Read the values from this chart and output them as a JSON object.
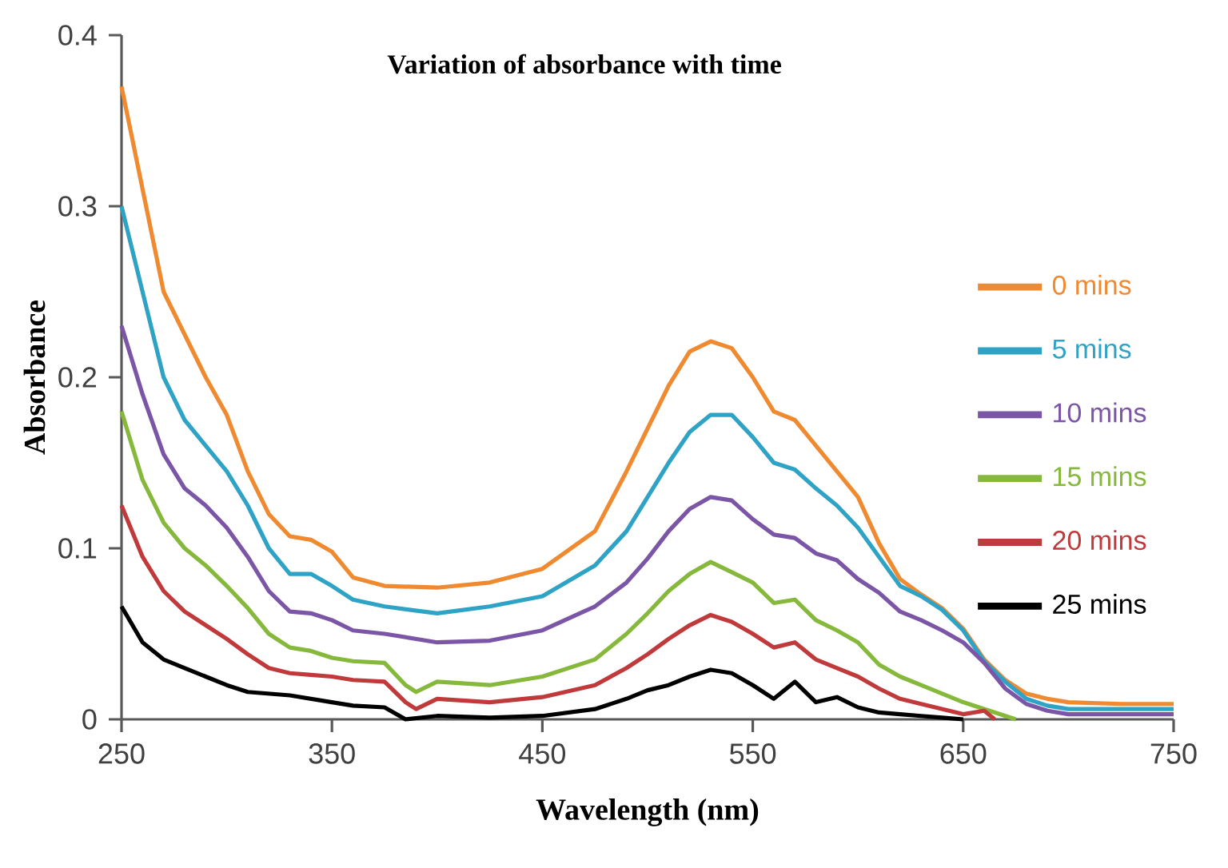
{
  "chart_data": {
    "type": "line",
    "title": "Variation of absorbance with time",
    "xlabel": "Wavelength (nm)",
    "ylabel": "Absorbance",
    "xlim": [
      250,
      750
    ],
    "ylim": [
      0,
      0.4
    ],
    "xticks": [
      250,
      350,
      450,
      550,
      650,
      750
    ],
    "yticks": [
      0,
      0.1,
      0.2,
      0.3,
      0.4
    ],
    "grid": false,
    "legend": "right",
    "line_style": "solid",
    "series": [
      {
        "name": "0 mins",
        "color": "#f08a30",
        "x": [
          250,
          260,
          270,
          280,
          290,
          300,
          310,
          320,
          330,
          340,
          350,
          360,
          375,
          400,
          425,
          450,
          475,
          490,
          500,
          510,
          520,
          530,
          540,
          550,
          560,
          570,
          580,
          590,
          600,
          610,
          620,
          630,
          640,
          650,
          660,
          670,
          680,
          690,
          700,
          725,
          750
        ],
        "values": [
          0.37,
          0.31,
          0.25,
          0.225,
          0.2,
          0.178,
          0.145,
          0.12,
          0.107,
          0.105,
          0.098,
          0.083,
          0.078,
          0.077,
          0.08,
          0.088,
          0.11,
          0.145,
          0.17,
          0.195,
          0.215,
          0.221,
          0.217,
          0.2,
          0.18,
          0.175,
          0.16,
          0.145,
          0.13,
          0.103,
          0.082,
          0.073,
          0.065,
          0.053,
          0.035,
          0.023,
          0.015,
          0.012,
          0.01,
          0.009,
          0.009
        ]
      },
      {
        "name": "5 mins",
        "color": "#2ea3c6",
        "x": [
          250,
          260,
          270,
          280,
          290,
          300,
          310,
          320,
          330,
          340,
          350,
          360,
          375,
          400,
          425,
          450,
          475,
          490,
          500,
          510,
          520,
          530,
          540,
          550,
          560,
          570,
          580,
          590,
          600,
          610,
          620,
          630,
          640,
          650,
          660,
          670,
          680,
          690,
          700,
          725,
          750
        ],
        "values": [
          0.3,
          0.25,
          0.2,
          0.175,
          0.16,
          0.145,
          0.125,
          0.1,
          0.085,
          0.085,
          0.078,
          0.07,
          0.066,
          0.062,
          0.066,
          0.072,
          0.09,
          0.11,
          0.13,
          0.15,
          0.168,
          0.178,
          0.178,
          0.165,
          0.15,
          0.146,
          0.135,
          0.125,
          0.112,
          0.095,
          0.078,
          0.072,
          0.064,
          0.052,
          0.034,
          0.022,
          0.012,
          0.008,
          0.006,
          0.006,
          0.006
        ]
      },
      {
        "name": "10 mins",
        "color": "#7b55a6",
        "x": [
          250,
          260,
          270,
          280,
          290,
          300,
          310,
          320,
          330,
          340,
          350,
          360,
          375,
          400,
          425,
          450,
          475,
          490,
          500,
          510,
          520,
          530,
          540,
          550,
          560,
          570,
          580,
          590,
          600,
          610,
          620,
          630,
          640,
          650,
          660,
          670,
          680,
          690,
          700,
          725,
          750
        ],
        "values": [
          0.23,
          0.19,
          0.155,
          0.135,
          0.125,
          0.112,
          0.095,
          0.075,
          0.063,
          0.062,
          0.058,
          0.052,
          0.05,
          0.045,
          0.046,
          0.052,
          0.066,
          0.08,
          0.094,
          0.11,
          0.123,
          0.13,
          0.128,
          0.117,
          0.108,
          0.106,
          0.097,
          0.093,
          0.082,
          0.074,
          0.063,
          0.058,
          0.052,
          0.045,
          0.033,
          0.018,
          0.009,
          0.005,
          0.003,
          0.003,
          0.003
        ]
      },
      {
        "name": "15 mins",
        "color": "#86b83c",
        "x": [
          250,
          260,
          270,
          280,
          290,
          300,
          310,
          320,
          330,
          340,
          350,
          360,
          375,
          385,
          390,
          400,
          425,
          450,
          475,
          490,
          500,
          510,
          520,
          530,
          540,
          550,
          560,
          570,
          580,
          590,
          600,
          610,
          620,
          630,
          640,
          650,
          660,
          670,
          675
        ],
        "values": [
          0.18,
          0.14,
          0.115,
          0.1,
          0.09,
          0.078,
          0.065,
          0.05,
          0.042,
          0.04,
          0.036,
          0.034,
          0.033,
          0.02,
          0.016,
          0.022,
          0.02,
          0.025,
          0.035,
          0.05,
          0.062,
          0.075,
          0.085,
          0.092,
          0.086,
          0.08,
          0.068,
          0.07,
          0.058,
          0.052,
          0.045,
          0.032,
          0.025,
          0.02,
          0.015,
          0.01,
          0.006,
          0.002,
          0
        ]
      },
      {
        "name": "20 mins",
        "color": "#c0393b",
        "x": [
          250,
          260,
          270,
          280,
          290,
          300,
          310,
          320,
          330,
          340,
          350,
          360,
          375,
          385,
          390,
          400,
          425,
          450,
          475,
          490,
          500,
          510,
          520,
          530,
          540,
          550,
          560,
          570,
          580,
          590,
          600,
          610,
          620,
          630,
          640,
          650,
          660,
          665
        ],
        "values": [
          0.125,
          0.095,
          0.075,
          0.063,
          0.055,
          0.047,
          0.038,
          0.03,
          0.027,
          0.026,
          0.025,
          0.023,
          0.022,
          0.01,
          0.006,
          0.012,
          0.01,
          0.013,
          0.02,
          0.03,
          0.038,
          0.047,
          0.055,
          0.061,
          0.057,
          0.05,
          0.042,
          0.045,
          0.035,
          0.03,
          0.025,
          0.018,
          0.012,
          0.009,
          0.006,
          0.003,
          0.005,
          0
        ]
      },
      {
        "name": "25 mins",
        "color": "#000000",
        "x": [
          250,
          260,
          270,
          280,
          290,
          300,
          310,
          320,
          330,
          340,
          350,
          360,
          375,
          385,
          400,
          425,
          450,
          475,
          490,
          500,
          510,
          520,
          530,
          540,
          550,
          560,
          570,
          580,
          590,
          600,
          610,
          620,
          630,
          640,
          650
        ],
        "values": [
          0.066,
          0.045,
          0.035,
          0.03,
          0.025,
          0.02,
          0.016,
          0.015,
          0.014,
          0.012,
          0.01,
          0.008,
          0.007,
          0,
          0.002,
          0.001,
          0.002,
          0.006,
          0.012,
          0.017,
          0.02,
          0.025,
          0.029,
          0.027,
          0.02,
          0.012,
          0.022,
          0.01,
          0.013,
          0.007,
          0.004,
          0.003,
          0.002,
          0.001,
          0
        ]
      }
    ]
  }
}
